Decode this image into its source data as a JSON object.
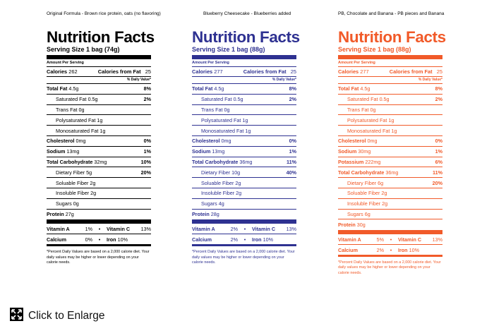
{
  "captions": [
    "Original Formula - Brown rice protein, oats (no flavoring)",
    "Blueberry Cheesecake - Blueberries added",
    "PB, Chocolate and Banana - PB pieces and Banana"
  ],
  "labels": {
    "title": "Nutrition Facts",
    "amount_per_serving": "Amount Per Serving",
    "calories": "Calories",
    "calories_from_fat": "Calories from Fat",
    "daily_value": "% Daily Value*",
    "total_fat": "Total Fat",
    "saturated_fat": "Saturated Fat",
    "trans_fat": "Trans Fat",
    "polysaturated_fat": "Polysaturated Fat",
    "monosaturated_fat": "Monosaturated Fat",
    "cholesterol": "Cholesterol",
    "sodium": "Sodium",
    "potassium": "Potassium",
    "total_carbohydrate": "Total Carbohydrate",
    "dietary_fiber": "Dietary Fiber",
    "soluable_fiber": "Soluable Fiber",
    "insoluble_fiber": "Insoluble Fiber",
    "sugars": "Sugars",
    "protein": "Protein",
    "vitamin_a": "Vitamin A",
    "vitamin_c": "Vitamin C",
    "calcium": "Calcium",
    "iron": "Iron",
    "bullet": "•",
    "footnote": "*Percent Daily Values are based on a 2,000 calorie diet. Your daily values may be higher or lower depending on your calorie needs."
  },
  "panels": [
    {
      "color": "#000000",
      "serving": "Serving Size 1 bag (74g)",
      "calories": "262",
      "calories_from_fat": "25",
      "total_fat": "4.5g",
      "total_fat_pct": "8%",
      "saturated_fat": "0.5g",
      "saturated_fat_pct": "2%",
      "trans_fat": "0g",
      "polysaturated_fat": "1g",
      "monosaturated_fat": "1g",
      "cholesterol": "0mg",
      "cholesterol_pct": "0%",
      "sodium": "13mg",
      "sodium_pct": "1%",
      "total_carbohydrate": "32mg",
      "total_carbohydrate_pct": "10%",
      "dietary_fiber": "5g",
      "dietary_fiber_pct": "20%",
      "soluable_fiber": "2g",
      "insoluble_fiber": "2g",
      "sugars": "0g",
      "protein": "27g",
      "vitamin_a": "1%",
      "vitamin_c": "13%",
      "calcium": "0%",
      "iron": "10%"
    },
    {
      "color": "#2e3191",
      "serving": "Serving Size 1 bag (88g)",
      "calories": "277",
      "calories_from_fat": "25",
      "total_fat": "4.5g",
      "total_fat_pct": "8%",
      "saturated_fat": "0.5g",
      "saturated_fat_pct": "2%",
      "trans_fat": "0g",
      "polysaturated_fat": "1g",
      "monosaturated_fat": "1g",
      "cholesterol": "0mg",
      "cholesterol_pct": "0%",
      "sodium": "13mg",
      "sodium_pct": "1%",
      "total_carbohydrate": "36mg",
      "total_carbohydrate_pct": "11%",
      "dietary_fiber": "10g",
      "dietary_fiber_pct": "40%",
      "soluable_fiber": "2g",
      "insoluble_fiber": "2g",
      "sugars": "4g",
      "protein": "28g",
      "vitamin_a": "2%",
      "vitamin_c": "13%",
      "calcium": "2%",
      "iron": "10%"
    },
    {
      "color": "#f15a29",
      "serving": "Serving Size 1 bag (88g)",
      "calories": "277",
      "calories_from_fat": "25",
      "total_fat": "4.5g",
      "total_fat_pct": "8%",
      "saturated_fat": "0.5g",
      "saturated_fat_pct": "2%",
      "trans_fat": "0g",
      "polysaturated_fat": "1g",
      "monosaturated_fat": "1g",
      "cholesterol": "0mg",
      "cholesterol_pct": "0%",
      "sodium": "30mg",
      "sodium_pct": "1%",
      "potassium": "222mg",
      "potassium_pct": "6%",
      "total_carbohydrate": "36mg",
      "total_carbohydrate_pct": "11%",
      "dietary_fiber": "6g",
      "dietary_fiber_pct": "20%",
      "soluable_fiber": "2g",
      "insoluble_fiber": "2g",
      "sugars": "6g",
      "protein": "30g",
      "vitamin_a": "5%",
      "vitamin_c": "13%",
      "calcium": "2%",
      "iron": "10%"
    }
  ],
  "enlarge": {
    "label": "Click to Enlarge",
    "icon": "expand-icon"
  }
}
